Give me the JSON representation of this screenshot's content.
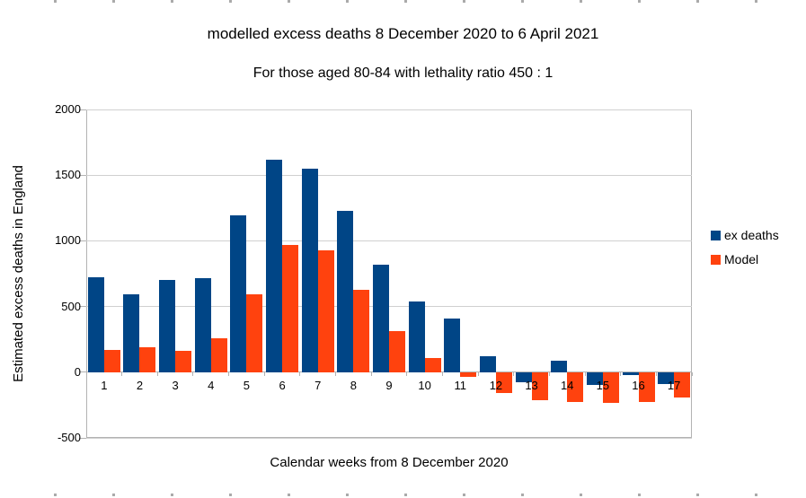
{
  "chart_data": {
    "type": "bar",
    "title": "modelled excess deaths 8 December 2020 to 6 April 2021",
    "subtitle": "For those aged 80-84 with lethality ratio 450 : 1",
    "xlabel": "Calendar weeks from 8 December 2020",
    "ylabel": "Estimated excess deaths in England",
    "categories": [
      "1",
      "2",
      "3",
      "4",
      "5",
      "6",
      "7",
      "8",
      "9",
      "10",
      "11",
      "12",
      "13",
      "14",
      "15",
      "16",
      "17"
    ],
    "series": [
      {
        "name": "ex deaths",
        "color": "#004586",
        "values": [
          720,
          590,
          705,
          715,
          1195,
          1615,
          1550,
          1230,
          815,
          535,
          410,
          125,
          -75,
          90,
          -100,
          -25,
          -90
        ]
      },
      {
        "name": "Model",
        "color": "#FF420E",
        "values": [
          170,
          190,
          160,
          255,
          590,
          970,
          930,
          630,
          315,
          110,
          -35,
          -160,
          -210,
          -225,
          -235,
          -225,
          -190
        ]
      }
    ],
    "ylim": [
      -500,
      2000
    ],
    "yticks": [
      2000,
      1500,
      1000,
      500,
      0,
      -500
    ],
    "grid": true,
    "legend": {
      "position": "right",
      "entries": [
        "ex deaths",
        "Model"
      ]
    }
  },
  "colors": {
    "series_blue": "#004586",
    "series_orange": "#FF420E",
    "gridline": "#d0d0d0",
    "axis": "#b3b3b3",
    "text": "#000000",
    "background": "#ffffff"
  }
}
